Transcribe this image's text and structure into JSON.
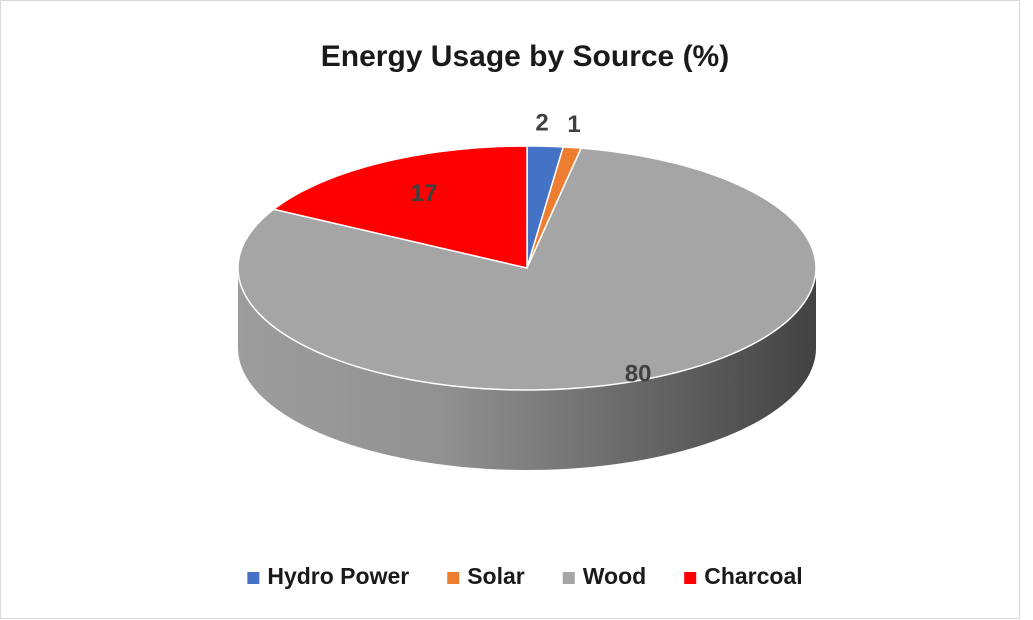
{
  "chart_data": {
    "type": "pie",
    "title": "Energy Usage by Source (%)",
    "categories": [
      "Hydro Power",
      "Solar",
      "Wood",
      "Charcoal"
    ],
    "values": [
      2,
      1,
      80,
      17
    ],
    "colors": [
      "#4472c4",
      "#ed7d31",
      "#a5a5a5",
      "#ff0000"
    ],
    "legend": "bottom",
    "style": "3d"
  }
}
